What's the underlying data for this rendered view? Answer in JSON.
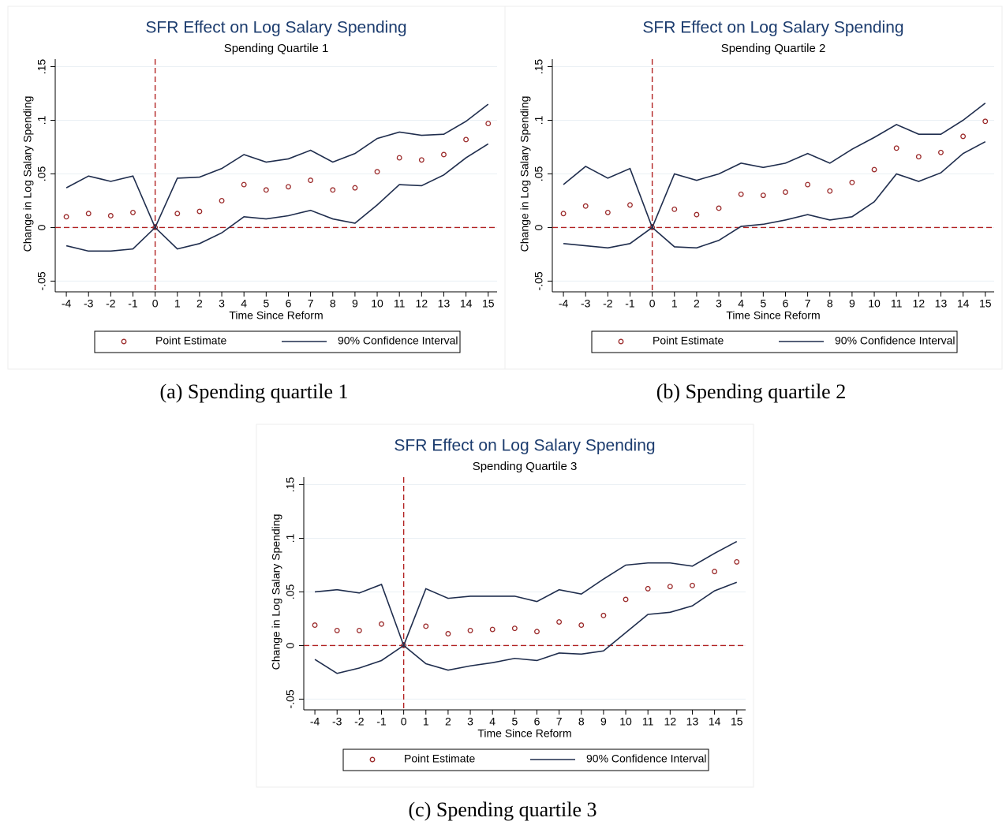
{
  "chart_data": [
    {
      "type": "line",
      "title": "SFR Effect on Log Salary Spending",
      "subtitle": "Spending Quartile 1",
      "xlabel": "Time Since Reform",
      "ylabel": "Change in Log Salary Spending",
      "caption": "(a) Spending quartile 1",
      "x": [
        -4,
        -3,
        -2,
        -1,
        0,
        1,
        2,
        3,
        4,
        5,
        6,
        7,
        8,
        9,
        10,
        11,
        12,
        13,
        14,
        15
      ],
      "xlim": [
        -4.5,
        15.4
      ],
      "xticks": [
        -4,
        -3,
        -2,
        -1,
        0,
        1,
        2,
        3,
        4,
        5,
        6,
        7,
        8,
        9,
        10,
        11,
        12,
        13,
        14,
        15
      ],
      "ylim": [
        -0.06,
        0.157
      ],
      "yticks": [
        {
          "value": -0.05,
          "label": "-.05"
        },
        0,
        {
          "value": 0.05,
          "label": ".05"
        },
        {
          "value": 0.1,
          "label": ".1"
        },
        {
          "value": 0.15,
          "label": ".15"
        }
      ],
      "grid": true,
      "reference_lines": {
        "x": 0,
        "y": 0,
        "color": "#b22222"
      },
      "series": [
        {
          "name": "Point Estimate",
          "color": "#9b2a2a",
          "values": [
            0.01,
            0.013,
            0.011,
            0.014,
            0,
            0.013,
            0.015,
            0.025,
            0.04,
            0.035,
            0.038,
            0.044,
            0.035,
            0.037,
            0.052,
            0.065,
            0.063,
            0.068,
            0.082,
            0.097
          ]
        },
        {
          "name": "90% Confidence Interval",
          "color": "#1f2d4d",
          "upper": [
            0.037,
            0.048,
            0.043,
            0.048,
            0,
            0.046,
            0.047,
            0.055,
            0.068,
            0.061,
            0.064,
            0.072,
            0.061,
            0.069,
            0.083,
            0.089,
            0.086,
            0.087,
            0.099,
            0.115
          ],
          "lower": [
            -0.017,
            -0.022,
            -0.022,
            -0.02,
            0,
            -0.02,
            -0.015,
            -0.005,
            0.01,
            0.008,
            0.011,
            0.016,
            0.008,
            0.004,
            0.021,
            0.04,
            0.039,
            0.049,
            0.065,
            0.078
          ]
        }
      ]
    },
    {
      "type": "line",
      "title": "SFR Effect on Log Salary Spending",
      "subtitle": "Spending Quartile 2",
      "xlabel": "Time Since Reform",
      "ylabel": "Change in Log Salary Spending",
      "caption": "(b) Spending quartile 2",
      "x": [
        -4,
        -3,
        -2,
        -1,
        0,
        1,
        2,
        3,
        4,
        5,
        6,
        7,
        8,
        9,
        10,
        11,
        12,
        13,
        14,
        15
      ],
      "xlim": [
        -4.5,
        15.4
      ],
      "xticks": [
        -4,
        -3,
        -2,
        -1,
        0,
        1,
        2,
        3,
        4,
        5,
        6,
        7,
        8,
        9,
        10,
        11,
        12,
        13,
        14,
        15
      ],
      "ylim": [
        -0.06,
        0.157
      ],
      "yticks": [
        {
          "value": -0.05,
          "label": "-.05"
        },
        0,
        {
          "value": 0.05,
          "label": ".05"
        },
        {
          "value": 0.1,
          "label": ".1"
        },
        {
          "value": 0.15,
          "label": ".15"
        }
      ],
      "grid": true,
      "reference_lines": {
        "x": 0,
        "y": 0,
        "color": "#b22222"
      },
      "series": [
        {
          "name": "Point Estimate",
          "color": "#9b2a2a",
          "values": [
            0.013,
            0.02,
            0.014,
            0.021,
            0,
            0.017,
            0.012,
            0.018,
            0.031,
            0.03,
            0.033,
            0.04,
            0.034,
            0.042,
            0.054,
            0.074,
            0.066,
            0.07,
            0.085,
            0.099
          ]
        },
        {
          "name": "90% Confidence Interval",
          "color": "#1f2d4d",
          "upper": [
            0.04,
            0.057,
            0.046,
            0.055,
            0,
            0.05,
            0.044,
            0.05,
            0.06,
            0.056,
            0.06,
            0.069,
            0.06,
            0.073,
            0.084,
            0.096,
            0.087,
            0.087,
            0.1,
            0.116
          ],
          "lower": [
            -0.015,
            -0.017,
            -0.019,
            -0.015,
            0,
            -0.018,
            -0.019,
            -0.012,
            0.001,
            0.003,
            0.007,
            0.012,
            0.007,
            0.01,
            0.024,
            0.05,
            0.043,
            0.051,
            0.069,
            0.08
          ]
        }
      ]
    },
    {
      "type": "line",
      "title": "SFR Effect on Log Salary Spending",
      "subtitle": "Spending Quartile 3",
      "xlabel": "Time Since Reform",
      "ylabel": "Change in Log Salary Spending",
      "caption": "(c) Spending quartile 3",
      "x": [
        -4,
        -3,
        -2,
        -1,
        0,
        1,
        2,
        3,
        4,
        5,
        6,
        7,
        8,
        9,
        10,
        11,
        12,
        13,
        14,
        15
      ],
      "xlim": [
        -4.5,
        15.4
      ],
      "xticks": [
        -4,
        -3,
        -2,
        -1,
        0,
        1,
        2,
        3,
        4,
        5,
        6,
        7,
        8,
        9,
        10,
        11,
        12,
        13,
        14,
        15
      ],
      "ylim": [
        -0.06,
        0.157
      ],
      "yticks": [
        {
          "value": -0.05,
          "label": "-.05"
        },
        0,
        {
          "value": 0.05,
          "label": ".05"
        },
        {
          "value": 0.1,
          "label": ".1"
        },
        {
          "value": 0.15,
          "label": ".15"
        }
      ],
      "grid": true,
      "reference_lines": {
        "x": 0,
        "y": 0,
        "color": "#b22222"
      },
      "series": [
        {
          "name": "Point Estimate",
          "color": "#9b2a2a",
          "values": [
            0.019,
            0.014,
            0.014,
            0.02,
            0,
            0.018,
            0.011,
            0.014,
            0.015,
            0.016,
            0.013,
            0.022,
            0.019,
            0.028,
            0.043,
            0.053,
            0.055,
            0.056,
            0.069,
            0.078
          ]
        },
        {
          "name": "90% Confidence Interval",
          "color": "#1f2d4d",
          "upper": [
            0.05,
            0.052,
            0.049,
            0.057,
            0,
            0.053,
            0.044,
            0.046,
            0.046,
            0.046,
            0.041,
            0.052,
            0.048,
            0.062,
            0.075,
            0.077,
            0.077,
            0.074,
            0.086,
            0.097
          ],
          "lower": [
            -0.013,
            -0.026,
            -0.021,
            -0.014,
            0,
            -0.017,
            -0.023,
            -0.019,
            -0.016,
            -0.012,
            -0.014,
            -0.007,
            -0.008,
            -0.005,
            0.012,
            0.029,
            0.031,
            0.037,
            0.051,
            0.059
          ]
        }
      ]
    }
  ]
}
